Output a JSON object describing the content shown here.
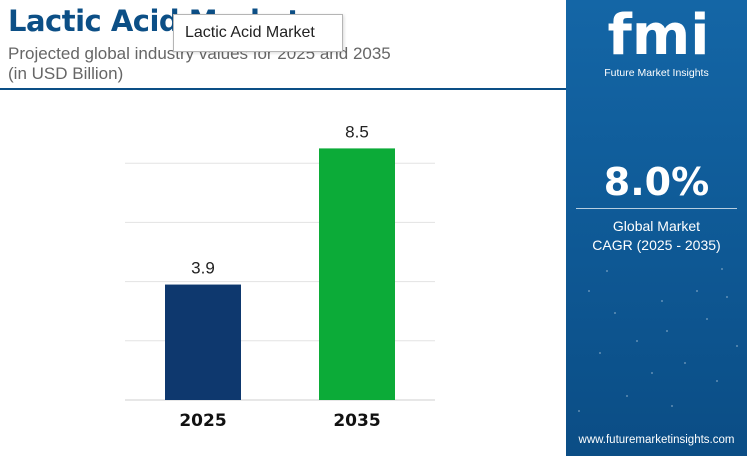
{
  "header": {
    "title": "Lactic Acid Market",
    "subtitle_line1": "Projected global industry values for 2025 and 2035",
    "subtitle_line2": "(in USD Billion)",
    "tooltip": "Lactic Acid Market"
  },
  "panel": {
    "logo_text": "fmi",
    "logo_subtext": "Future Market Insights",
    "cagr_value": "8.0%",
    "cagr_label_line1": "Global Market",
    "cagr_label_line2": "CAGR (2025 - 2035)",
    "website": "www.futuremarketinsights.com"
  },
  "colors": {
    "title": "#0c4f86",
    "panel": "#1466a6",
    "bar_2025": "#0e386e",
    "bar_2035": "#0cab38"
  },
  "chart_data": {
    "type": "bar",
    "categories": [
      "2025",
      "2035"
    ],
    "values": [
      3.9,
      8.5
    ],
    "data_labels": [
      "3.9",
      "8.5"
    ],
    "colors": [
      "#0e386e",
      "#0cab38"
    ],
    "ylim": [
      0,
      10
    ],
    "grid": true,
    "xlabel": "",
    "ylabel": ""
  }
}
